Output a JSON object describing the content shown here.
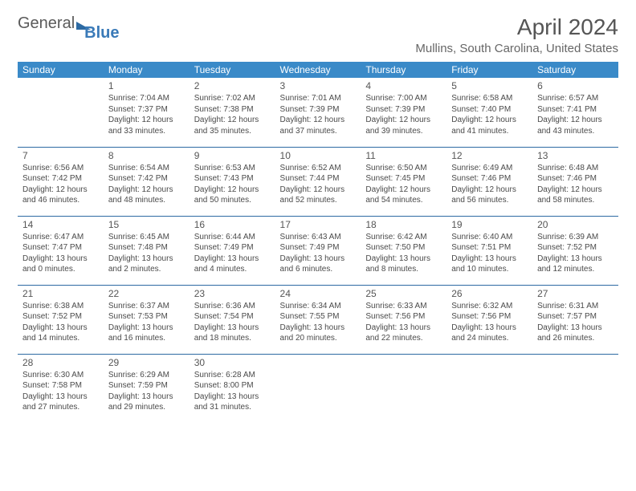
{
  "logo": {
    "general": "General",
    "blue": "Blue"
  },
  "title": "April 2024",
  "location": "Mullins, South Carolina, United States",
  "day_headers": [
    "Sunday",
    "Monday",
    "Tuesday",
    "Wednesday",
    "Thursday",
    "Friday",
    "Saturday"
  ],
  "header_bg": "#3a8ac8",
  "header_fg": "#ffffff",
  "border_color": "#2d6aa3",
  "text_color": "#4a4a4a",
  "weeks": [
    [
      null,
      {
        "n": "1",
        "sr": "Sunrise: 7:04 AM",
        "ss": "Sunset: 7:37 PM",
        "d1": "Daylight: 12 hours",
        "d2": "and 33 minutes."
      },
      {
        "n": "2",
        "sr": "Sunrise: 7:02 AM",
        "ss": "Sunset: 7:38 PM",
        "d1": "Daylight: 12 hours",
        "d2": "and 35 minutes."
      },
      {
        "n": "3",
        "sr": "Sunrise: 7:01 AM",
        "ss": "Sunset: 7:39 PM",
        "d1": "Daylight: 12 hours",
        "d2": "and 37 minutes."
      },
      {
        "n": "4",
        "sr": "Sunrise: 7:00 AM",
        "ss": "Sunset: 7:39 PM",
        "d1": "Daylight: 12 hours",
        "d2": "and 39 minutes."
      },
      {
        "n": "5",
        "sr": "Sunrise: 6:58 AM",
        "ss": "Sunset: 7:40 PM",
        "d1": "Daylight: 12 hours",
        "d2": "and 41 minutes."
      },
      {
        "n": "6",
        "sr": "Sunrise: 6:57 AM",
        "ss": "Sunset: 7:41 PM",
        "d1": "Daylight: 12 hours",
        "d2": "and 43 minutes."
      }
    ],
    [
      {
        "n": "7",
        "sr": "Sunrise: 6:56 AM",
        "ss": "Sunset: 7:42 PM",
        "d1": "Daylight: 12 hours",
        "d2": "and 46 minutes."
      },
      {
        "n": "8",
        "sr": "Sunrise: 6:54 AM",
        "ss": "Sunset: 7:42 PM",
        "d1": "Daylight: 12 hours",
        "d2": "and 48 minutes."
      },
      {
        "n": "9",
        "sr": "Sunrise: 6:53 AM",
        "ss": "Sunset: 7:43 PM",
        "d1": "Daylight: 12 hours",
        "d2": "and 50 minutes."
      },
      {
        "n": "10",
        "sr": "Sunrise: 6:52 AM",
        "ss": "Sunset: 7:44 PM",
        "d1": "Daylight: 12 hours",
        "d2": "and 52 minutes."
      },
      {
        "n": "11",
        "sr": "Sunrise: 6:50 AM",
        "ss": "Sunset: 7:45 PM",
        "d1": "Daylight: 12 hours",
        "d2": "and 54 minutes."
      },
      {
        "n": "12",
        "sr": "Sunrise: 6:49 AM",
        "ss": "Sunset: 7:46 PM",
        "d1": "Daylight: 12 hours",
        "d2": "and 56 minutes."
      },
      {
        "n": "13",
        "sr": "Sunrise: 6:48 AM",
        "ss": "Sunset: 7:46 PM",
        "d1": "Daylight: 12 hours",
        "d2": "and 58 minutes."
      }
    ],
    [
      {
        "n": "14",
        "sr": "Sunrise: 6:47 AM",
        "ss": "Sunset: 7:47 PM",
        "d1": "Daylight: 13 hours",
        "d2": "and 0 minutes."
      },
      {
        "n": "15",
        "sr": "Sunrise: 6:45 AM",
        "ss": "Sunset: 7:48 PM",
        "d1": "Daylight: 13 hours",
        "d2": "and 2 minutes."
      },
      {
        "n": "16",
        "sr": "Sunrise: 6:44 AM",
        "ss": "Sunset: 7:49 PM",
        "d1": "Daylight: 13 hours",
        "d2": "and 4 minutes."
      },
      {
        "n": "17",
        "sr": "Sunrise: 6:43 AM",
        "ss": "Sunset: 7:49 PM",
        "d1": "Daylight: 13 hours",
        "d2": "and 6 minutes."
      },
      {
        "n": "18",
        "sr": "Sunrise: 6:42 AM",
        "ss": "Sunset: 7:50 PM",
        "d1": "Daylight: 13 hours",
        "d2": "and 8 minutes."
      },
      {
        "n": "19",
        "sr": "Sunrise: 6:40 AM",
        "ss": "Sunset: 7:51 PM",
        "d1": "Daylight: 13 hours",
        "d2": "and 10 minutes."
      },
      {
        "n": "20",
        "sr": "Sunrise: 6:39 AM",
        "ss": "Sunset: 7:52 PM",
        "d1": "Daylight: 13 hours",
        "d2": "and 12 minutes."
      }
    ],
    [
      {
        "n": "21",
        "sr": "Sunrise: 6:38 AM",
        "ss": "Sunset: 7:52 PM",
        "d1": "Daylight: 13 hours",
        "d2": "and 14 minutes."
      },
      {
        "n": "22",
        "sr": "Sunrise: 6:37 AM",
        "ss": "Sunset: 7:53 PM",
        "d1": "Daylight: 13 hours",
        "d2": "and 16 minutes."
      },
      {
        "n": "23",
        "sr": "Sunrise: 6:36 AM",
        "ss": "Sunset: 7:54 PM",
        "d1": "Daylight: 13 hours",
        "d2": "and 18 minutes."
      },
      {
        "n": "24",
        "sr": "Sunrise: 6:34 AM",
        "ss": "Sunset: 7:55 PM",
        "d1": "Daylight: 13 hours",
        "d2": "and 20 minutes."
      },
      {
        "n": "25",
        "sr": "Sunrise: 6:33 AM",
        "ss": "Sunset: 7:56 PM",
        "d1": "Daylight: 13 hours",
        "d2": "and 22 minutes."
      },
      {
        "n": "26",
        "sr": "Sunrise: 6:32 AM",
        "ss": "Sunset: 7:56 PM",
        "d1": "Daylight: 13 hours",
        "d2": "and 24 minutes."
      },
      {
        "n": "27",
        "sr": "Sunrise: 6:31 AM",
        "ss": "Sunset: 7:57 PM",
        "d1": "Daylight: 13 hours",
        "d2": "and 26 minutes."
      }
    ],
    [
      {
        "n": "28",
        "sr": "Sunrise: 6:30 AM",
        "ss": "Sunset: 7:58 PM",
        "d1": "Daylight: 13 hours",
        "d2": "and 27 minutes."
      },
      {
        "n": "29",
        "sr": "Sunrise: 6:29 AM",
        "ss": "Sunset: 7:59 PM",
        "d1": "Daylight: 13 hours",
        "d2": "and 29 minutes."
      },
      {
        "n": "30",
        "sr": "Sunrise: 6:28 AM",
        "ss": "Sunset: 8:00 PM",
        "d1": "Daylight: 13 hours",
        "d2": "and 31 minutes."
      },
      null,
      null,
      null,
      null
    ]
  ]
}
